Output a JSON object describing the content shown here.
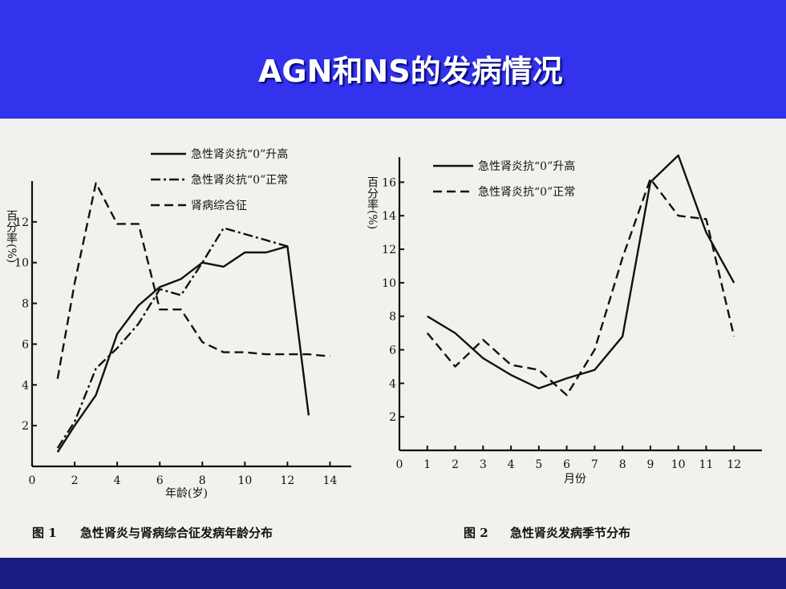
{
  "slide": {
    "title": "AGN和NS的发病情况",
    "header_color": "#3333ee",
    "footer_color": "#1a1a80"
  },
  "chart_data": [
    {
      "type": "line",
      "caption_no": "图 1",
      "caption": "急性肾炎与肾病综合征发病年龄分布",
      "xlabel": "年龄(岁)",
      "ylabel": "百分率(%)",
      "x_ticks": [
        "0",
        "2",
        "4",
        "6",
        "8",
        "10",
        "12",
        "14"
      ],
      "y_ticks": [
        "2",
        "4",
        "6",
        "8",
        "10",
        "12"
      ],
      "xlim": [
        0,
        15
      ],
      "ylim": [
        0,
        14
      ],
      "series": [
        {
          "name": "急性肾炎抗“0”升高",
          "style": "solid",
          "x": [
            1.2,
            2,
            3,
            4,
            5,
            6,
            7,
            8,
            9,
            10,
            11,
            12,
            13
          ],
          "y": [
            0.7,
            2.0,
            3.5,
            6.5,
            7.9,
            8.8,
            9.2,
            10.0,
            9.8,
            10.5,
            10.5,
            10.8,
            2.5
          ]
        },
        {
          "name": "急性肾炎抗“0”正常",
          "style": "dashdot",
          "x": [
            1.2,
            2,
            3,
            4,
            5,
            6,
            7,
            8,
            9,
            10,
            11,
            12
          ],
          "y": [
            0.9,
            2.2,
            4.8,
            5.8,
            7.0,
            8.7,
            8.4,
            10.0,
            11.7,
            11.4,
            11.1,
            10.8
          ]
        },
        {
          "name": "肾病综合征",
          "style": "dashed",
          "x": [
            1.2,
            2,
            3,
            4,
            5,
            6,
            7,
            8,
            9,
            10,
            11,
            12,
            13,
            14
          ],
          "y": [
            4.3,
            9.0,
            13.9,
            11.9,
            11.9,
            7.7,
            7.7,
            6.1,
            5.6,
            5.6,
            5.5,
            5.5,
            5.5,
            5.4
          ]
        }
      ]
    },
    {
      "type": "line",
      "caption_no": "图 2",
      "caption": "急性肾炎发病季节分布",
      "xlabel": "月份",
      "ylabel": "百分率(%)",
      "x_ticks": [
        "0",
        "1",
        "2",
        "3",
        "4",
        "5",
        "6",
        "7",
        "8",
        "9",
        "10",
        "11",
        "12"
      ],
      "y_ticks": [
        "2",
        "4",
        "6",
        "8",
        "10",
        "12",
        "14",
        "16"
      ],
      "xlim": [
        0,
        13
      ],
      "ylim": [
        0,
        17.5
      ],
      "series": [
        {
          "name": "急性肾炎抗“0”升高",
          "style": "solid",
          "x": [
            1,
            2,
            3,
            4,
            5,
            6,
            7,
            8,
            9,
            10,
            11,
            12
          ],
          "y": [
            8.0,
            7.0,
            5.5,
            4.5,
            3.7,
            4.3,
            4.8,
            6.8,
            16.0,
            17.6,
            13.0,
            10.0
          ]
        },
        {
          "name": "急性肾炎抗“0”正常",
          "style": "dashed",
          "x": [
            1,
            2,
            3,
            4,
            5,
            6,
            7,
            8,
            9,
            10,
            11,
            12
          ],
          "y": [
            7.0,
            5.0,
            6.6,
            5.1,
            4.8,
            3.3,
            6.0,
            11.5,
            16.2,
            14.0,
            13.8,
            6.8
          ]
        }
      ]
    }
  ]
}
